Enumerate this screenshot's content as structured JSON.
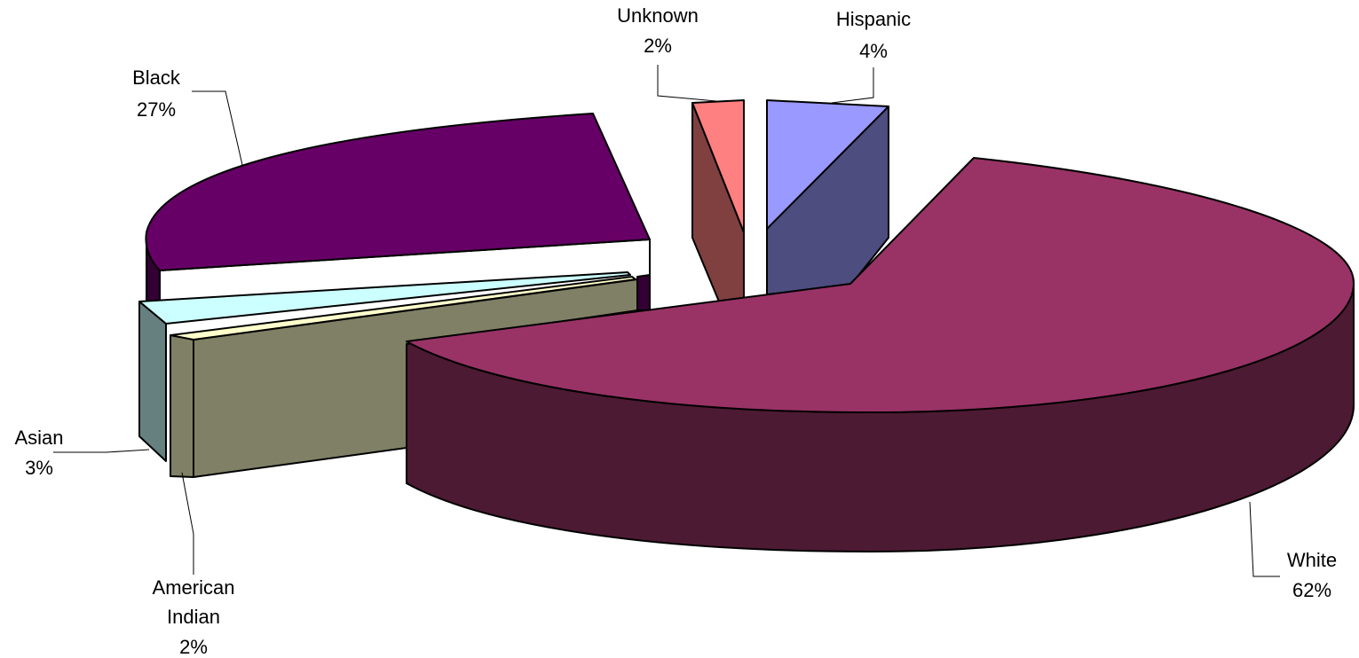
{
  "chart_data": {
    "type": "pie",
    "style": "3d-exploded",
    "title": "",
    "categories": [
      "White",
      "Black",
      "Asian",
      "American Indian",
      "Unknown",
      "Hispanic"
    ],
    "values": [
      62,
      27,
      3,
      2,
      2,
      4
    ],
    "labels": [
      {
        "name": "White",
        "percent": "62%"
      },
      {
        "name": "Black",
        "percent": "27%"
      },
      {
        "name": "Asian",
        "percent": "3%"
      },
      {
        "name_line1": "American",
        "name_line2": "Indian",
        "percent": "2%"
      },
      {
        "name": "Unknown",
        "percent": "2%"
      },
      {
        "name": "Hispanic",
        "percent": "4%"
      }
    ],
    "colors": {
      "White": {
        "top": "#993366",
        "side": "#4d1a33"
      },
      "Black": {
        "top": "#660066",
        "side": "#330033"
      },
      "Asian": {
        "top": "#ccffff",
        "side": "#668080"
      },
      "American Indian": {
        "top": "#ffffcc",
        "side": "#808066"
      },
      "Unknown": {
        "top": "#ff8080",
        "side": "#804040"
      },
      "Hispanic": {
        "top": "#9999ff",
        "side": "#4d4d80"
      }
    },
    "legend": "none"
  }
}
